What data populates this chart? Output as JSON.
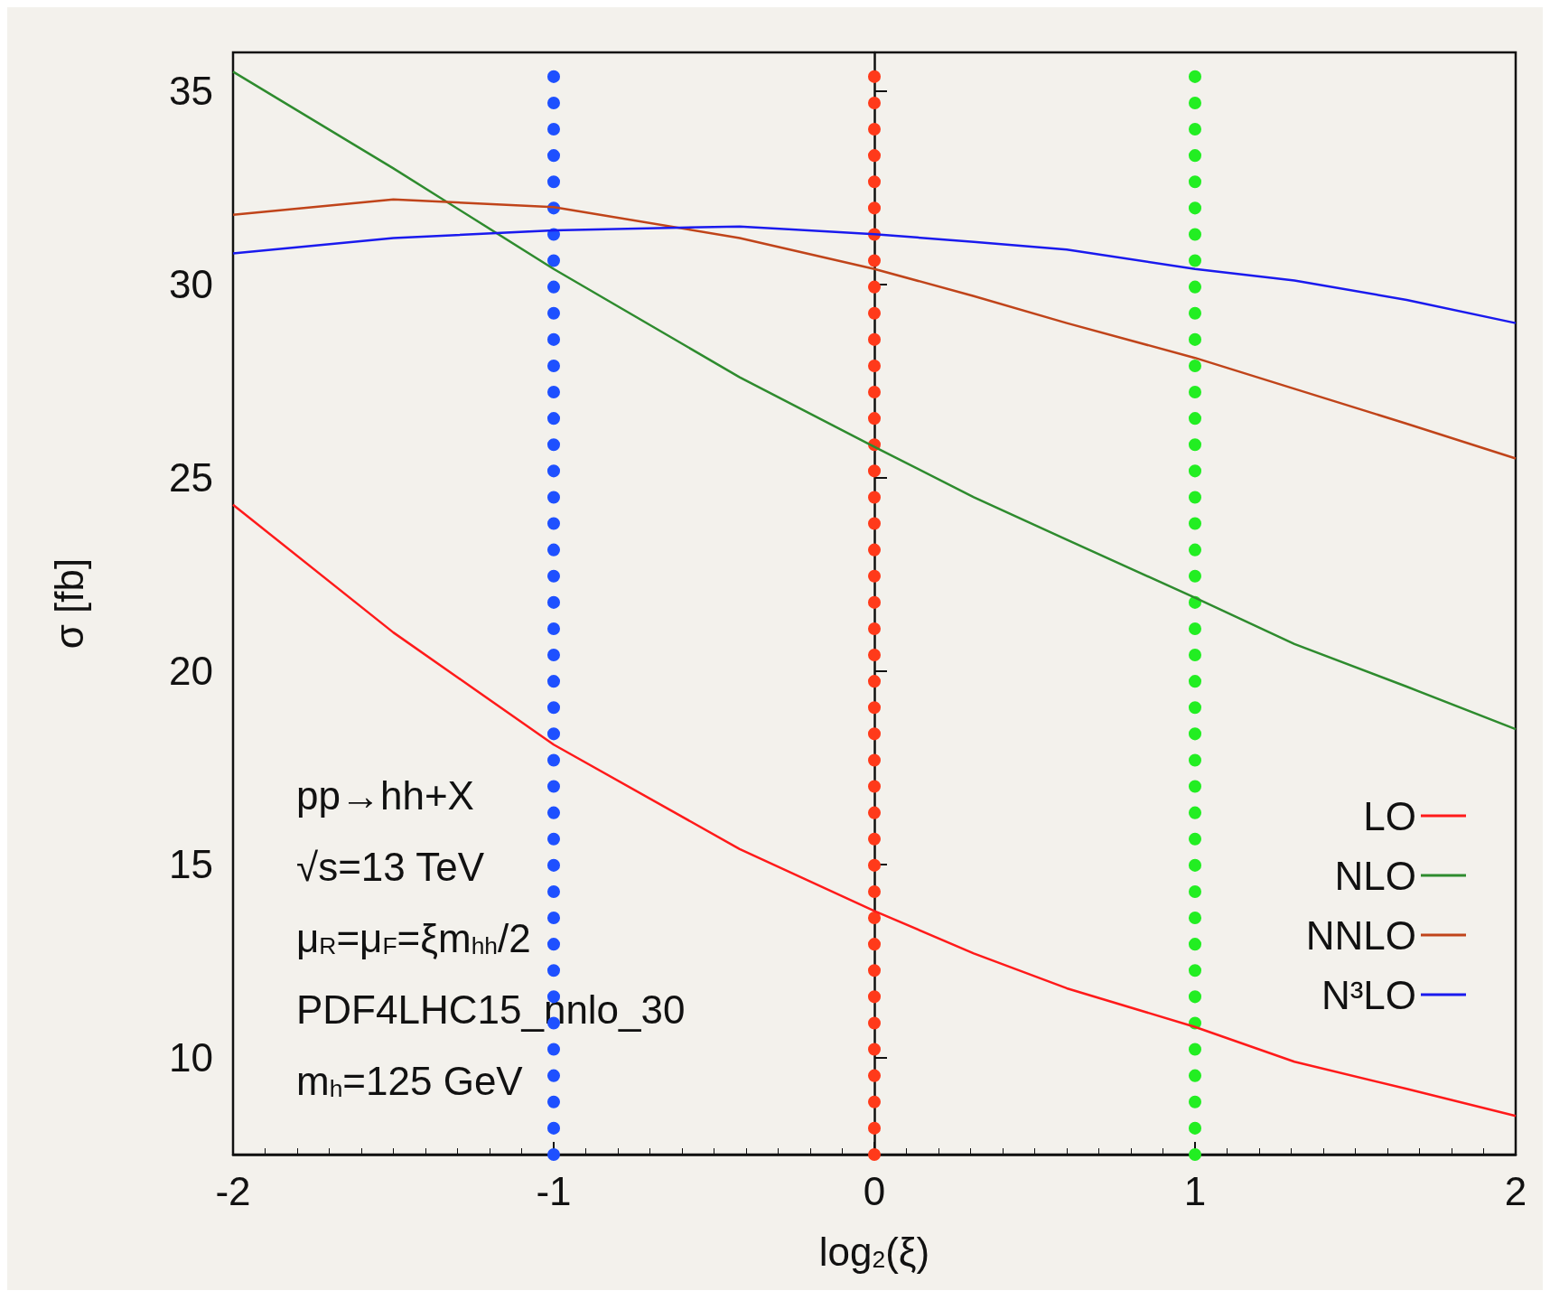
{
  "chart_data": {
    "type": "line",
    "xlabel": "log$_{2}$(ξ)",
    "ylabel": "σ [fb]",
    "xlim": [
      -2,
      2
    ],
    "xticks": [
      -2,
      -1,
      0,
      1,
      2
    ],
    "ylim": [
      7.5,
      36
    ],
    "yticks": [
      10,
      15,
      20,
      25,
      30,
      35
    ],
    "x": [
      -2,
      -1.5,
      -1,
      -0.42,
      0,
      0.31,
      0.6,
      1,
      1.31,
      1.66,
      2
    ],
    "series": [
      {
        "name": "LO",
        "color": "#ff1a1a",
        "values": [
          24.3,
          21.0,
          18.1,
          15.4,
          13.8,
          12.7,
          11.8,
          10.8,
          9.9,
          9.2,
          8.5
        ]
      },
      {
        "name": "NLO",
        "color": "#2e8b2e",
        "values": [
          35.5,
          33.0,
          30.4,
          27.6,
          25.8,
          24.5,
          23.4,
          21.9,
          20.7,
          19.6,
          18.5
        ]
      },
      {
        "name": "NNLO",
        "color": "#c0441a",
        "values": [
          31.8,
          32.2,
          32.0,
          31.2,
          30.4,
          29.7,
          29.0,
          28.1,
          27.3,
          26.4,
          25.5
        ]
      },
      {
        "name": "N³LO",
        "color": "#1a1aee",
        "values": [
          30.8,
          31.2,
          31.4,
          31.5,
          31.3,
          31.1,
          30.9,
          30.4,
          30.1,
          29.6,
          29.0
        ]
      }
    ],
    "ref_lines": [
      {
        "axis": "x",
        "value": -1,
        "color": "#1e50ff",
        "line_style": "dotted"
      },
      {
        "axis": "x",
        "value": 0,
        "color": "#ff3a1a",
        "line_style": "dotted"
      },
      {
        "axis": "x",
        "value": 1,
        "color": "#22ee22",
        "line_style": "dotted"
      }
    ],
    "annotations": [
      "pp→hh+X",
      "√s=13 TeV",
      "μ$_{R}$=μ$_{F}$=ξm$_{hh}$/2",
      "PDF4LHC15_nnlo_30",
      "m$_{h}$=125 GeV"
    ],
    "legend": "bottom right",
    "grid": false
  }
}
